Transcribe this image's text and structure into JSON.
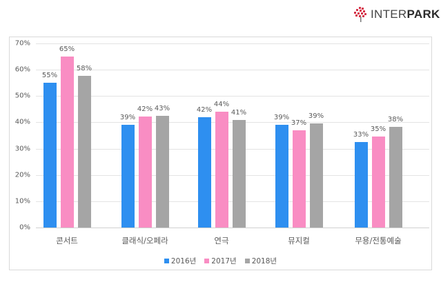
{
  "brand": {
    "logo_text_thin": "INTER",
    "logo_text_bold": "PARK",
    "logo_icon": "interpark-tree-icon",
    "logo_color": "#d6334a"
  },
  "chart_data": {
    "type": "bar",
    "title": "",
    "xlabel": "",
    "ylabel": "",
    "ylim": [
      0,
      70
    ],
    "yticks": [
      "0%",
      "10%",
      "20%",
      "30%",
      "40%",
      "50%",
      "60%",
      "70%"
    ],
    "grid": true,
    "legend_position": "bottom",
    "categories": [
      "콘서트",
      "클래식/오페라",
      "연극",
      "뮤지컬",
      "무용/전통예술"
    ],
    "series": [
      {
        "name": "2016년",
        "color": "#2e8ff0",
        "values": [
          55,
          39,
          42,
          39,
          33
        ],
        "labels": [
          "55%",
          "39%",
          "42%",
          "39%",
          "33%"
        ]
      },
      {
        "name": "2017년",
        "color": "#f98dc3",
        "values": [
          65,
          42,
          44,
          37,
          35
        ],
        "labels": [
          "65%",
          "42%",
          "44%",
          "37%",
          "35%"
        ]
      },
      {
        "name": "2018년",
        "color": "#a5a5a5",
        "values": [
          58,
          43,
          41,
          39,
          38
        ],
        "labels": [
          "58%",
          "43%",
          "41%",
          "39%",
          "38%"
        ]
      }
    ],
    "bar_heights_precise": {
      "2016년": [
        55,
        39,
        42,
        39,
        32.5
      ],
      "2017년": [
        65,
        42.3,
        44,
        37,
        34.7
      ],
      "2018년": [
        57.8,
        42.6,
        41,
        39.5,
        38.2
      ]
    }
  }
}
